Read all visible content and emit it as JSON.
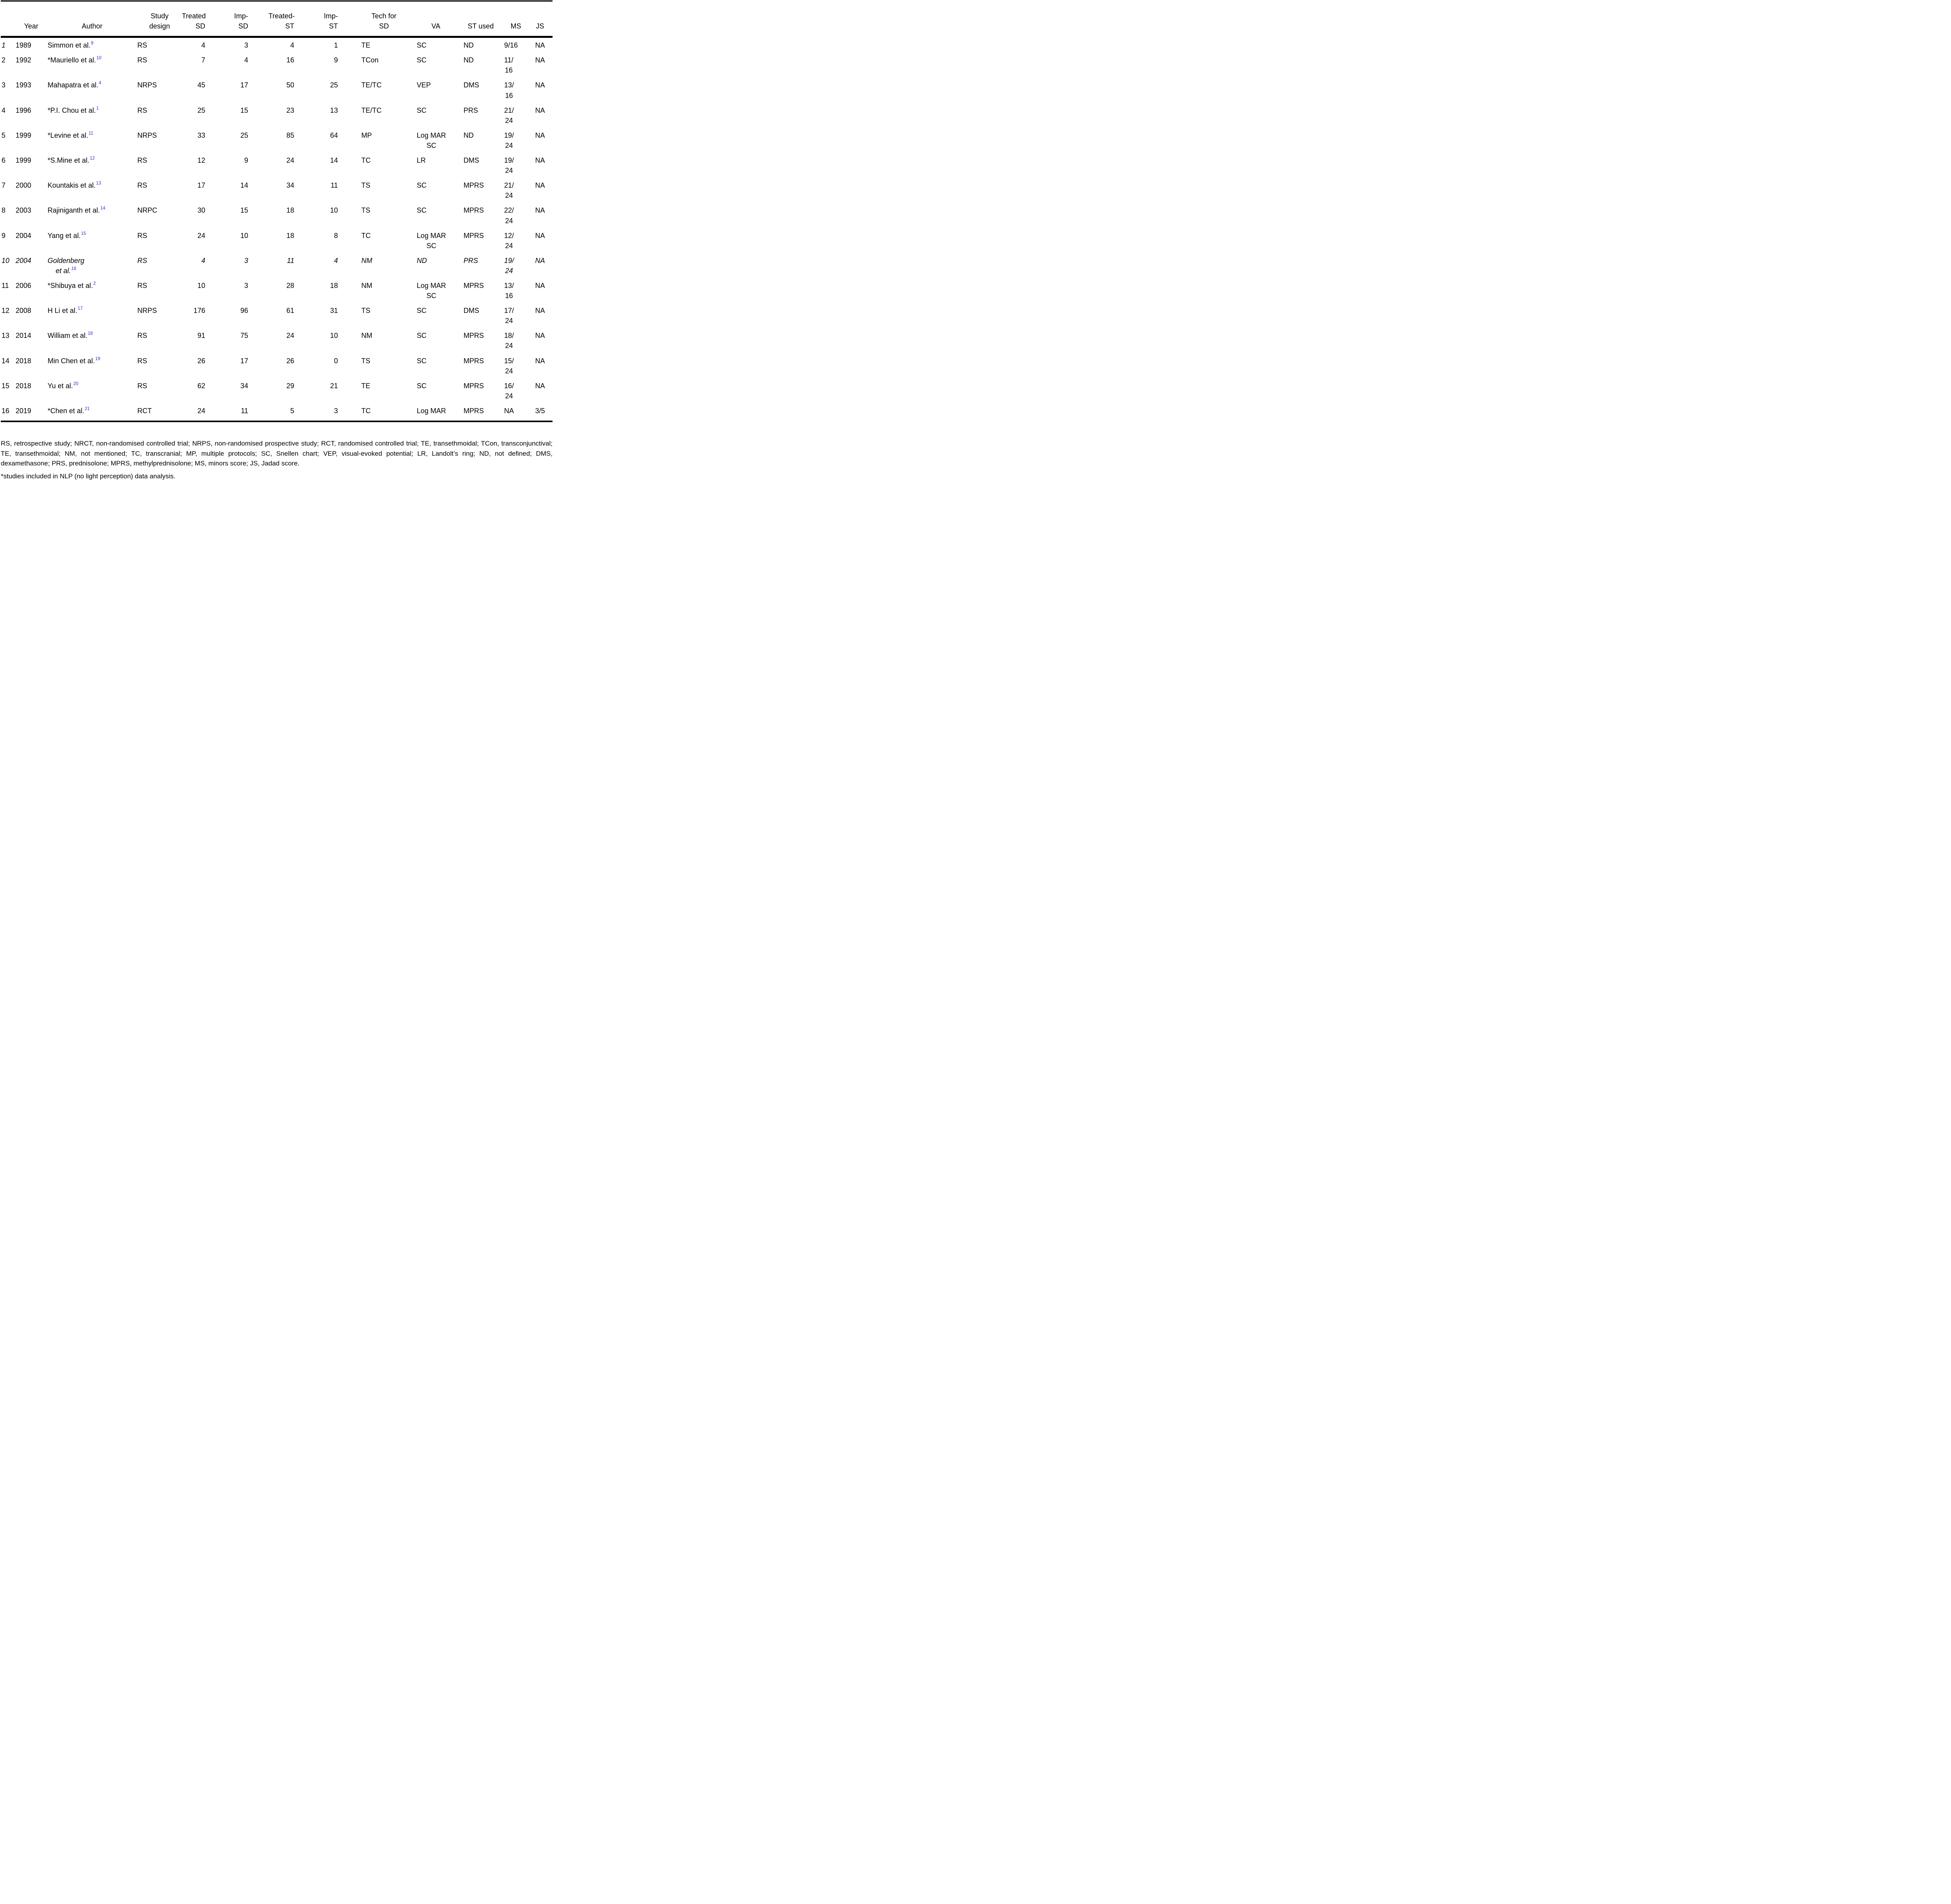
{
  "colors": {
    "ref_blue": "#2033cc",
    "text": "#000000",
    "rule": "#000000"
  },
  "table": {
    "columns": [
      {
        "key": "idx",
        "label": ""
      },
      {
        "key": "year",
        "label": "Year"
      },
      {
        "key": "author",
        "label": "Author"
      },
      {
        "key": "design",
        "label": "Study\ndesign"
      },
      {
        "key": "tsd",
        "label": "Treated\nSD"
      },
      {
        "key": "isd",
        "label": "Imp-\nSD"
      },
      {
        "key": "tst",
        "label": "Treated-\nST"
      },
      {
        "key": "ist",
        "label": "Imp-\nST"
      },
      {
        "key": "tech",
        "label": "Tech for\nSD"
      },
      {
        "key": "va",
        "label": "VA"
      },
      {
        "key": "st",
        "label": "ST used"
      },
      {
        "key": "ms",
        "label": "MS"
      },
      {
        "key": "js",
        "label": "JS"
      }
    ],
    "rows": [
      {
        "idx": "1",
        "italic_idx": true,
        "italic": false,
        "year": "1989",
        "author": "Simmon et al.",
        "ref": "9",
        "design": "RS",
        "tsd": "4",
        "isd": "3",
        "tst": "4",
        "ist": "1",
        "tech": "TE",
        "va": "SC",
        "st": "ND",
        "ms": "9/16",
        "js": "NA"
      },
      {
        "idx": "2",
        "italic_idx": false,
        "italic": false,
        "year": "1992",
        "author": "*Mauriello et al.",
        "ref": "10",
        "design": "RS",
        "tsd": "7",
        "isd": "4",
        "tst": "16",
        "ist": "9",
        "tech": "TCon",
        "va": "SC",
        "st": "ND",
        "ms": "11/\n16",
        "js": "NA"
      },
      {
        "idx": "3",
        "italic_idx": false,
        "italic": false,
        "year": "1993",
        "author": "Mahapatra et al.",
        "ref": "4",
        "design": "NRPS",
        "tsd": "45",
        "isd": "17",
        "tst": "50",
        "ist": "25",
        "tech": "TE/TC",
        "va": "VEP",
        "st": "DMS",
        "ms": "13/\n16",
        "js": "NA"
      },
      {
        "idx": "4",
        "italic_idx": false,
        "italic": false,
        "year": "1996",
        "author": "*P.I. Chou et al.",
        "ref": "1",
        "design": "RS",
        "tsd": "25",
        "isd": "15",
        "tst": "23",
        "ist": "13",
        "tech": "TE/TC",
        "va": "SC",
        "st": "PRS",
        "ms": "21/\n24",
        "js": "NA"
      },
      {
        "idx": "5",
        "italic_idx": false,
        "italic": false,
        "year": "1999",
        "author": "*Levine et al.",
        "ref": "11",
        "design": "NRPS",
        "tsd": "33",
        "isd": "25",
        "tst": "85",
        "ist": "64",
        "tech": "MP",
        "va": "Log MAR\nSC",
        "st": "ND",
        "ms": "19/\n24",
        "js": "NA"
      },
      {
        "idx": "6",
        "italic_idx": false,
        "italic": false,
        "year": "1999",
        "author": "*S.Mine et al.",
        "ref": "12",
        "design": "RS",
        "tsd": "12",
        "isd": "9",
        "tst": "24",
        "ist": "14",
        "tech": "TC",
        "va": "LR",
        "st": "DMS",
        "ms": "19/\n24",
        "js": "NA"
      },
      {
        "idx": "7",
        "italic_idx": false,
        "italic": false,
        "year": "2000",
        "author": "Kountakis et al.",
        "ref": "13",
        "design": "RS",
        "tsd": "17",
        "isd": "14",
        "tst": "34",
        "ist": "11",
        "tech": "TS",
        "va": "SC",
        "st": "MPRS",
        "ms": "21/\n24",
        "js": "NA"
      },
      {
        "idx": "8",
        "italic_idx": false,
        "italic": false,
        "year": "2003",
        "author": "Rajiniganth et al.",
        "ref": "14",
        "design": "NRPC",
        "tsd": "30",
        "isd": "15",
        "tst": "18",
        "ist": "10",
        "tech": "TS",
        "va": "SC",
        "st": "MPRS",
        "ms": "22/\n24",
        "js": "NA"
      },
      {
        "idx": "9",
        "italic_idx": false,
        "italic": false,
        "year": "2004",
        "author": "Yang et al.",
        "ref": "15",
        "design": "RS",
        "tsd": "24",
        "isd": "10",
        "tst": "18",
        "ist": "8",
        "tech": "TC",
        "va": "Log MAR\nSC",
        "st": "MPRS",
        "ms": "12/\n24",
        "js": "NA"
      },
      {
        "idx": "10",
        "italic_idx": true,
        "italic": true,
        "year": "2004",
        "author": "Goldenberg\net al.",
        "ref": "16",
        "design": "RS",
        "tsd": "4",
        "isd": "3",
        "tst": "11",
        "ist": "4",
        "tech": "NM",
        "va": "ND",
        "st": "PRS",
        "ms": "19/\n24",
        "js": "NA"
      },
      {
        "idx": "11",
        "italic_idx": false,
        "italic": false,
        "year": "2006",
        "author": "*Shibuya et al.",
        "ref": "2",
        "design": "RS",
        "tsd": "10",
        "isd": "3",
        "tst": "28",
        "ist": "18",
        "tech": "NM",
        "va": "Log MAR\nSC",
        "st": "MPRS",
        "ms": "13/\n16",
        "js": "NA"
      },
      {
        "idx": "12",
        "italic_idx": false,
        "italic": false,
        "year": "2008",
        "author": "H Li et al.",
        "ref": "17",
        "design": "NRPS",
        "tsd": "176",
        "isd": "96",
        "tst": "61",
        "ist": "31",
        "tech": "TS",
        "va": "SC",
        "st": "DMS",
        "ms": "17/\n24",
        "js": "NA"
      },
      {
        "idx": "13",
        "italic_idx": false,
        "italic": false,
        "year": "2014",
        "author": "William et al.",
        "ref": "18",
        "design": "RS",
        "tsd": "91",
        "isd": "75",
        "tst": "24",
        "ist": "10",
        "tech": "NM",
        "va": "SC",
        "st": "MPRS",
        "ms": "18/\n24",
        "js": "NA"
      },
      {
        "idx": "14",
        "italic_idx": false,
        "italic": false,
        "year": "2018",
        "author": "Min Chen et al.",
        "ref": "19",
        "design": "RS",
        "tsd": "26",
        "isd": "17",
        "tst": "26",
        "ist": "0",
        "tech": "TS",
        "va": "SC",
        "st": "MPRS",
        "ms": "15/\n24",
        "js": "NA"
      },
      {
        "idx": "15",
        "italic_idx": false,
        "italic": false,
        "year": "2018",
        "author": "Yu et al.",
        "ref": "20",
        "design": "RS",
        "tsd": "62",
        "isd": "34",
        "tst": "29",
        "ist": "21",
        "tech": "TE",
        "va": "SC",
        "st": "MPRS",
        "ms": "16/\n24",
        "js": "NA"
      },
      {
        "idx": "16",
        "italic_idx": false,
        "italic": false,
        "year": "2019",
        "author": "*Chen et al.",
        "ref": "21",
        "design": "RCT",
        "tsd": "24",
        "isd": "11",
        "tst": "5",
        "ist": "3",
        "tech": "TC",
        "va": "Log MAR",
        "st": "MPRS",
        "ms": "NA",
        "js": "3/5"
      }
    ]
  },
  "footnotes": {
    "abbreviations": "RS, retrospective study; NRCT, non-randomised controlled trial; NRPS, non-randomised prospective study; RCT, randomised controlled trial; TE, transethmoidal; TCon, transconjunctival; TE, transethmoidal; NM, not mentioned; TC, transcranial; MP, multiple protocols; SC, Snellen chart; VEP, visual-evoked potential; LR, Landolt’s ring; ND, not defined; DMS, dexamethasone; PRS, prednisolone; MPRS, methylprednisolone; MS, minors score; JS, Jadad score.",
    "asterisk": "*studies included in NLP (no light perception) data analysis."
  }
}
